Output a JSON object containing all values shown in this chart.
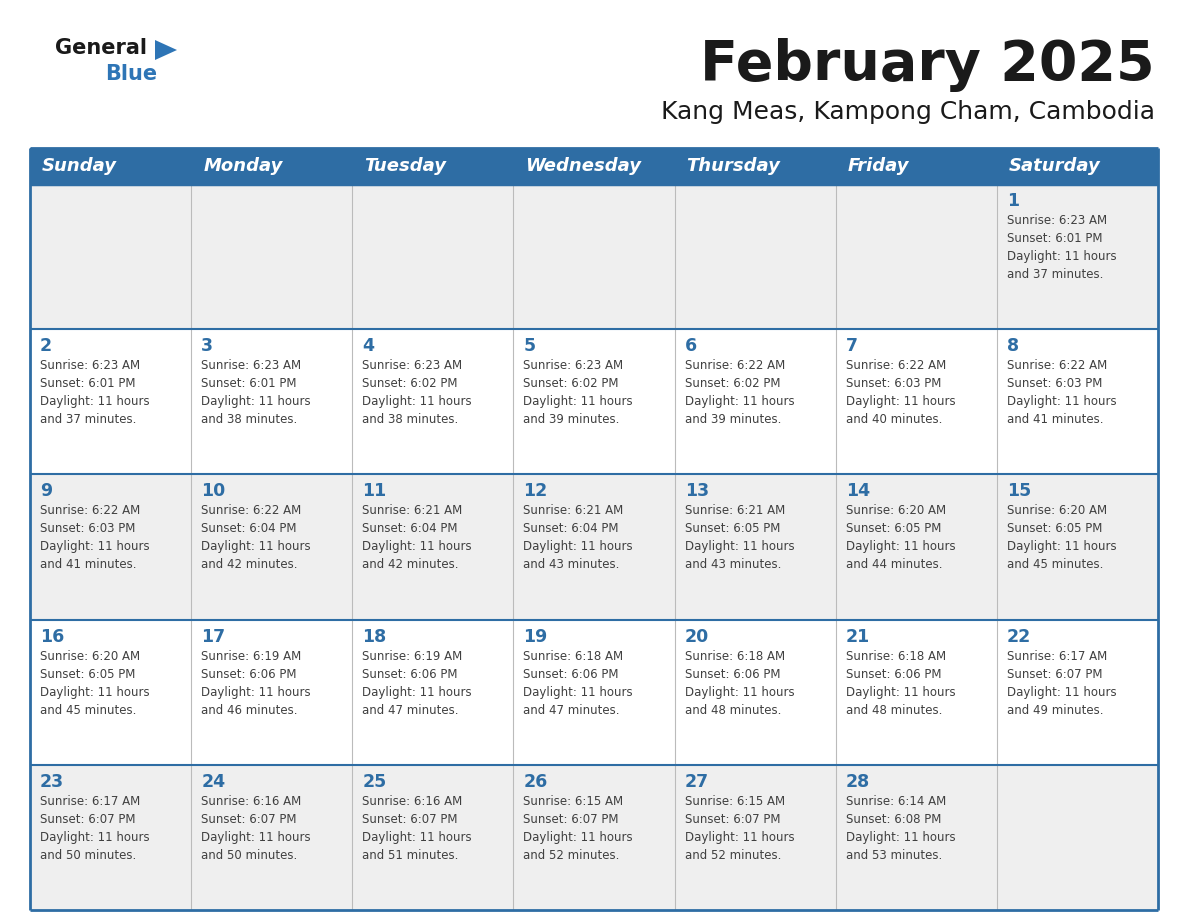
{
  "title": "February 2025",
  "subtitle": "Kang Meas, Kampong Cham, Cambodia",
  "header_bg": "#2E6DA4",
  "header_text_color": "#FFFFFF",
  "cell_bg_odd": "#EFEFEF",
  "cell_bg_even": "#FFFFFF",
  "day_number_color": "#2E6DA4",
  "info_text_color": "#404040",
  "border_color": "#2E6DA4",
  "cell_line_color": "#BBBBBB",
  "days_of_week": [
    "Sunday",
    "Monday",
    "Tuesday",
    "Wednesday",
    "Thursday",
    "Friday",
    "Saturday"
  ],
  "weeks": [
    [
      {
        "day": 0,
        "info": ""
      },
      {
        "day": 0,
        "info": ""
      },
      {
        "day": 0,
        "info": ""
      },
      {
        "day": 0,
        "info": ""
      },
      {
        "day": 0,
        "info": ""
      },
      {
        "day": 0,
        "info": ""
      },
      {
        "day": 1,
        "info": "Sunrise: 6:23 AM\nSunset: 6:01 PM\nDaylight: 11 hours\nand 37 minutes."
      }
    ],
    [
      {
        "day": 2,
        "info": "Sunrise: 6:23 AM\nSunset: 6:01 PM\nDaylight: 11 hours\nand 37 minutes."
      },
      {
        "day": 3,
        "info": "Sunrise: 6:23 AM\nSunset: 6:01 PM\nDaylight: 11 hours\nand 38 minutes."
      },
      {
        "day": 4,
        "info": "Sunrise: 6:23 AM\nSunset: 6:02 PM\nDaylight: 11 hours\nand 38 minutes."
      },
      {
        "day": 5,
        "info": "Sunrise: 6:23 AM\nSunset: 6:02 PM\nDaylight: 11 hours\nand 39 minutes."
      },
      {
        "day": 6,
        "info": "Sunrise: 6:22 AM\nSunset: 6:02 PM\nDaylight: 11 hours\nand 39 minutes."
      },
      {
        "day": 7,
        "info": "Sunrise: 6:22 AM\nSunset: 6:03 PM\nDaylight: 11 hours\nand 40 minutes."
      },
      {
        "day": 8,
        "info": "Sunrise: 6:22 AM\nSunset: 6:03 PM\nDaylight: 11 hours\nand 41 minutes."
      }
    ],
    [
      {
        "day": 9,
        "info": "Sunrise: 6:22 AM\nSunset: 6:03 PM\nDaylight: 11 hours\nand 41 minutes."
      },
      {
        "day": 10,
        "info": "Sunrise: 6:22 AM\nSunset: 6:04 PM\nDaylight: 11 hours\nand 42 minutes."
      },
      {
        "day": 11,
        "info": "Sunrise: 6:21 AM\nSunset: 6:04 PM\nDaylight: 11 hours\nand 42 minutes."
      },
      {
        "day": 12,
        "info": "Sunrise: 6:21 AM\nSunset: 6:04 PM\nDaylight: 11 hours\nand 43 minutes."
      },
      {
        "day": 13,
        "info": "Sunrise: 6:21 AM\nSunset: 6:05 PM\nDaylight: 11 hours\nand 43 minutes."
      },
      {
        "day": 14,
        "info": "Sunrise: 6:20 AM\nSunset: 6:05 PM\nDaylight: 11 hours\nand 44 minutes."
      },
      {
        "day": 15,
        "info": "Sunrise: 6:20 AM\nSunset: 6:05 PM\nDaylight: 11 hours\nand 45 minutes."
      }
    ],
    [
      {
        "day": 16,
        "info": "Sunrise: 6:20 AM\nSunset: 6:05 PM\nDaylight: 11 hours\nand 45 minutes."
      },
      {
        "day": 17,
        "info": "Sunrise: 6:19 AM\nSunset: 6:06 PM\nDaylight: 11 hours\nand 46 minutes."
      },
      {
        "day": 18,
        "info": "Sunrise: 6:19 AM\nSunset: 6:06 PM\nDaylight: 11 hours\nand 47 minutes."
      },
      {
        "day": 19,
        "info": "Sunrise: 6:18 AM\nSunset: 6:06 PM\nDaylight: 11 hours\nand 47 minutes."
      },
      {
        "day": 20,
        "info": "Sunrise: 6:18 AM\nSunset: 6:06 PM\nDaylight: 11 hours\nand 48 minutes."
      },
      {
        "day": 21,
        "info": "Sunrise: 6:18 AM\nSunset: 6:06 PM\nDaylight: 11 hours\nand 48 minutes."
      },
      {
        "day": 22,
        "info": "Sunrise: 6:17 AM\nSunset: 6:07 PM\nDaylight: 11 hours\nand 49 minutes."
      }
    ],
    [
      {
        "day": 23,
        "info": "Sunrise: 6:17 AM\nSunset: 6:07 PM\nDaylight: 11 hours\nand 50 minutes."
      },
      {
        "day": 24,
        "info": "Sunrise: 6:16 AM\nSunset: 6:07 PM\nDaylight: 11 hours\nand 50 minutes."
      },
      {
        "day": 25,
        "info": "Sunrise: 6:16 AM\nSunset: 6:07 PM\nDaylight: 11 hours\nand 51 minutes."
      },
      {
        "day": 26,
        "info": "Sunrise: 6:15 AM\nSunset: 6:07 PM\nDaylight: 11 hours\nand 52 minutes."
      },
      {
        "day": 27,
        "info": "Sunrise: 6:15 AM\nSunset: 6:07 PM\nDaylight: 11 hours\nand 52 minutes."
      },
      {
        "day": 28,
        "info": "Sunrise: 6:14 AM\nSunset: 6:08 PM\nDaylight: 11 hours\nand 53 minutes."
      },
      {
        "day": 0,
        "info": ""
      }
    ]
  ]
}
